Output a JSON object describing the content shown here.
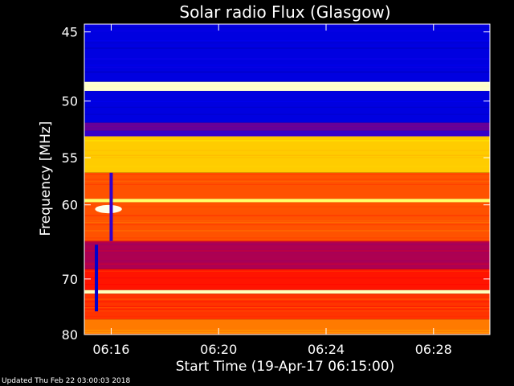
{
  "chart_data": {
    "type": "heatmap",
    "title": "Solar radio Flux (Glasgow)",
    "xlabel": "Start Time (19-Apr-17 06:15:00)",
    "ylabel": "Frequency [MHz]",
    "x_unit": "minutes after 06:15:00",
    "xlim": [
      0.0,
      15.1
    ],
    "ylim_inverted": [
      44.5,
      80.0
    ],
    "y_ticks": [
      45,
      50,
      55,
      60,
      70,
      80
    ],
    "y_tick_labels": [
      "45",
      "50",
      "55",
      "60",
      "70",
      "80"
    ],
    "x_ticks": [
      1,
      5,
      9,
      13
    ],
    "x_tick_labels": [
      "06:16",
      "06:20",
      "06:24",
      "06:28"
    ],
    "colormap": [
      "#000000",
      "#0000ff",
      "#ff0000",
      "#ffff00",
      "#ffffff"
    ],
    "intensity_bands": [
      {
        "from": 44.5,
        "to": 48.5,
        "level": 0.22
      },
      {
        "from": 48.5,
        "to": 49.2,
        "level": 0.95
      },
      {
        "from": 49.2,
        "to": 51.8,
        "level": 0.22
      },
      {
        "from": 51.8,
        "to": 52.5,
        "level": 0.35
      },
      {
        "from": 52.5,
        "to": 53.0,
        "level": 0.3
      },
      {
        "from": 53.0,
        "to": 56.5,
        "level": 0.7
      },
      {
        "from": 56.5,
        "to": 59.3,
        "level": 0.58
      },
      {
        "from": 59.3,
        "to": 59.7,
        "level": 0.85
      },
      {
        "from": 59.7,
        "to": 64.5,
        "level": 0.58
      },
      {
        "from": 64.5,
        "to": 68.5,
        "level": 0.42
      },
      {
        "from": 68.5,
        "to": 71.8,
        "level": 0.52
      },
      {
        "from": 71.8,
        "to": 72.4,
        "level": 0.93
      },
      {
        "from": 72.4,
        "to": 77.0,
        "level": 0.55
      },
      {
        "from": 77.0,
        "to": 80.0,
        "level": 0.62
      }
    ],
    "features": [
      {
        "type": "burst",
        "x": [
          0.4,
          1.4
        ],
        "y": [
          60.2,
          60.8
        ],
        "level": 0.98
      },
      {
        "type": "vertical_line",
        "x": 0.45,
        "y": [
          65.0,
          75.5
        ],
        "level": 0.2
      },
      {
        "type": "vertical_line",
        "x": 1.0,
        "y": [
          56.5,
          64.5
        ],
        "level": 0.3
      }
    ]
  },
  "footer": "Updated Thu Feb 22 03:00:03 2018"
}
